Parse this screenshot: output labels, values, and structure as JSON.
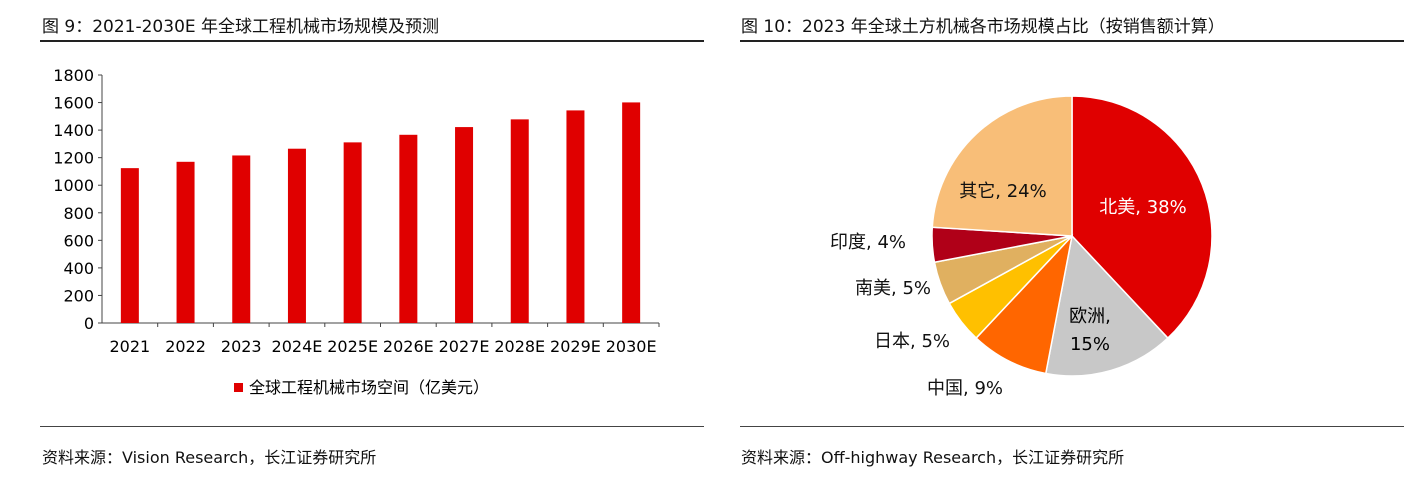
{
  "left": {
    "title": "图 9：2021-2030E 年全球工程机械市场规模及预测",
    "source": "资料来源：Vision Research，长江证券研究所"
  },
  "right": {
    "title": "图 10：2023 年全球土方机械各市场规模占比（按销售额计算）",
    "source": "资料来源：Off-highway Research，长江证券研究所"
  },
  "chart_data": [
    {
      "type": "bar",
      "title": "2021-2030E 年全球工程机械市场规模及预测",
      "categories": [
        "2021",
        "2022",
        "2023",
        "2024E",
        "2025E",
        "2026E",
        "2027E",
        "2028E",
        "2029E",
        "2030E"
      ],
      "series": [
        {
          "name": "全球工程机械市场空间（亿美元）",
          "values": [
            1124,
            1170,
            1216,
            1265,
            1311,
            1366,
            1422,
            1478,
            1543,
            1601
          ],
          "color": "#e00000"
        }
      ],
      "ylim": [
        0,
        1800
      ],
      "yticks": [
        0,
        200,
        400,
        600,
        800,
        1000,
        1200,
        1400,
        1600,
        1800
      ],
      "legend": "bottom"
    },
    {
      "type": "pie",
      "title": "2023 年全球土方机械各市场规模占比（按销售额计算）",
      "slices": [
        {
          "label": "北美, 38%",
          "value": 38,
          "color": "#e00000"
        },
        {
          "label": "欧洲, 15%",
          "value": 15,
          "color": "#c8c8c8"
        },
        {
          "label": "中国, 9%",
          "value": 9,
          "color": "#ff6600"
        },
        {
          "label": "日本, 5%",
          "value": 5,
          "color": "#ffc000"
        },
        {
          "label": "南美, 5%",
          "value": 5,
          "color": "#e0b060"
        },
        {
          "label": "印度, 4%",
          "value": 4,
          "color": "#b00018"
        },
        {
          "label": "其它, 24%",
          "value": 24,
          "color": "#f8be78"
        }
      ]
    }
  ]
}
